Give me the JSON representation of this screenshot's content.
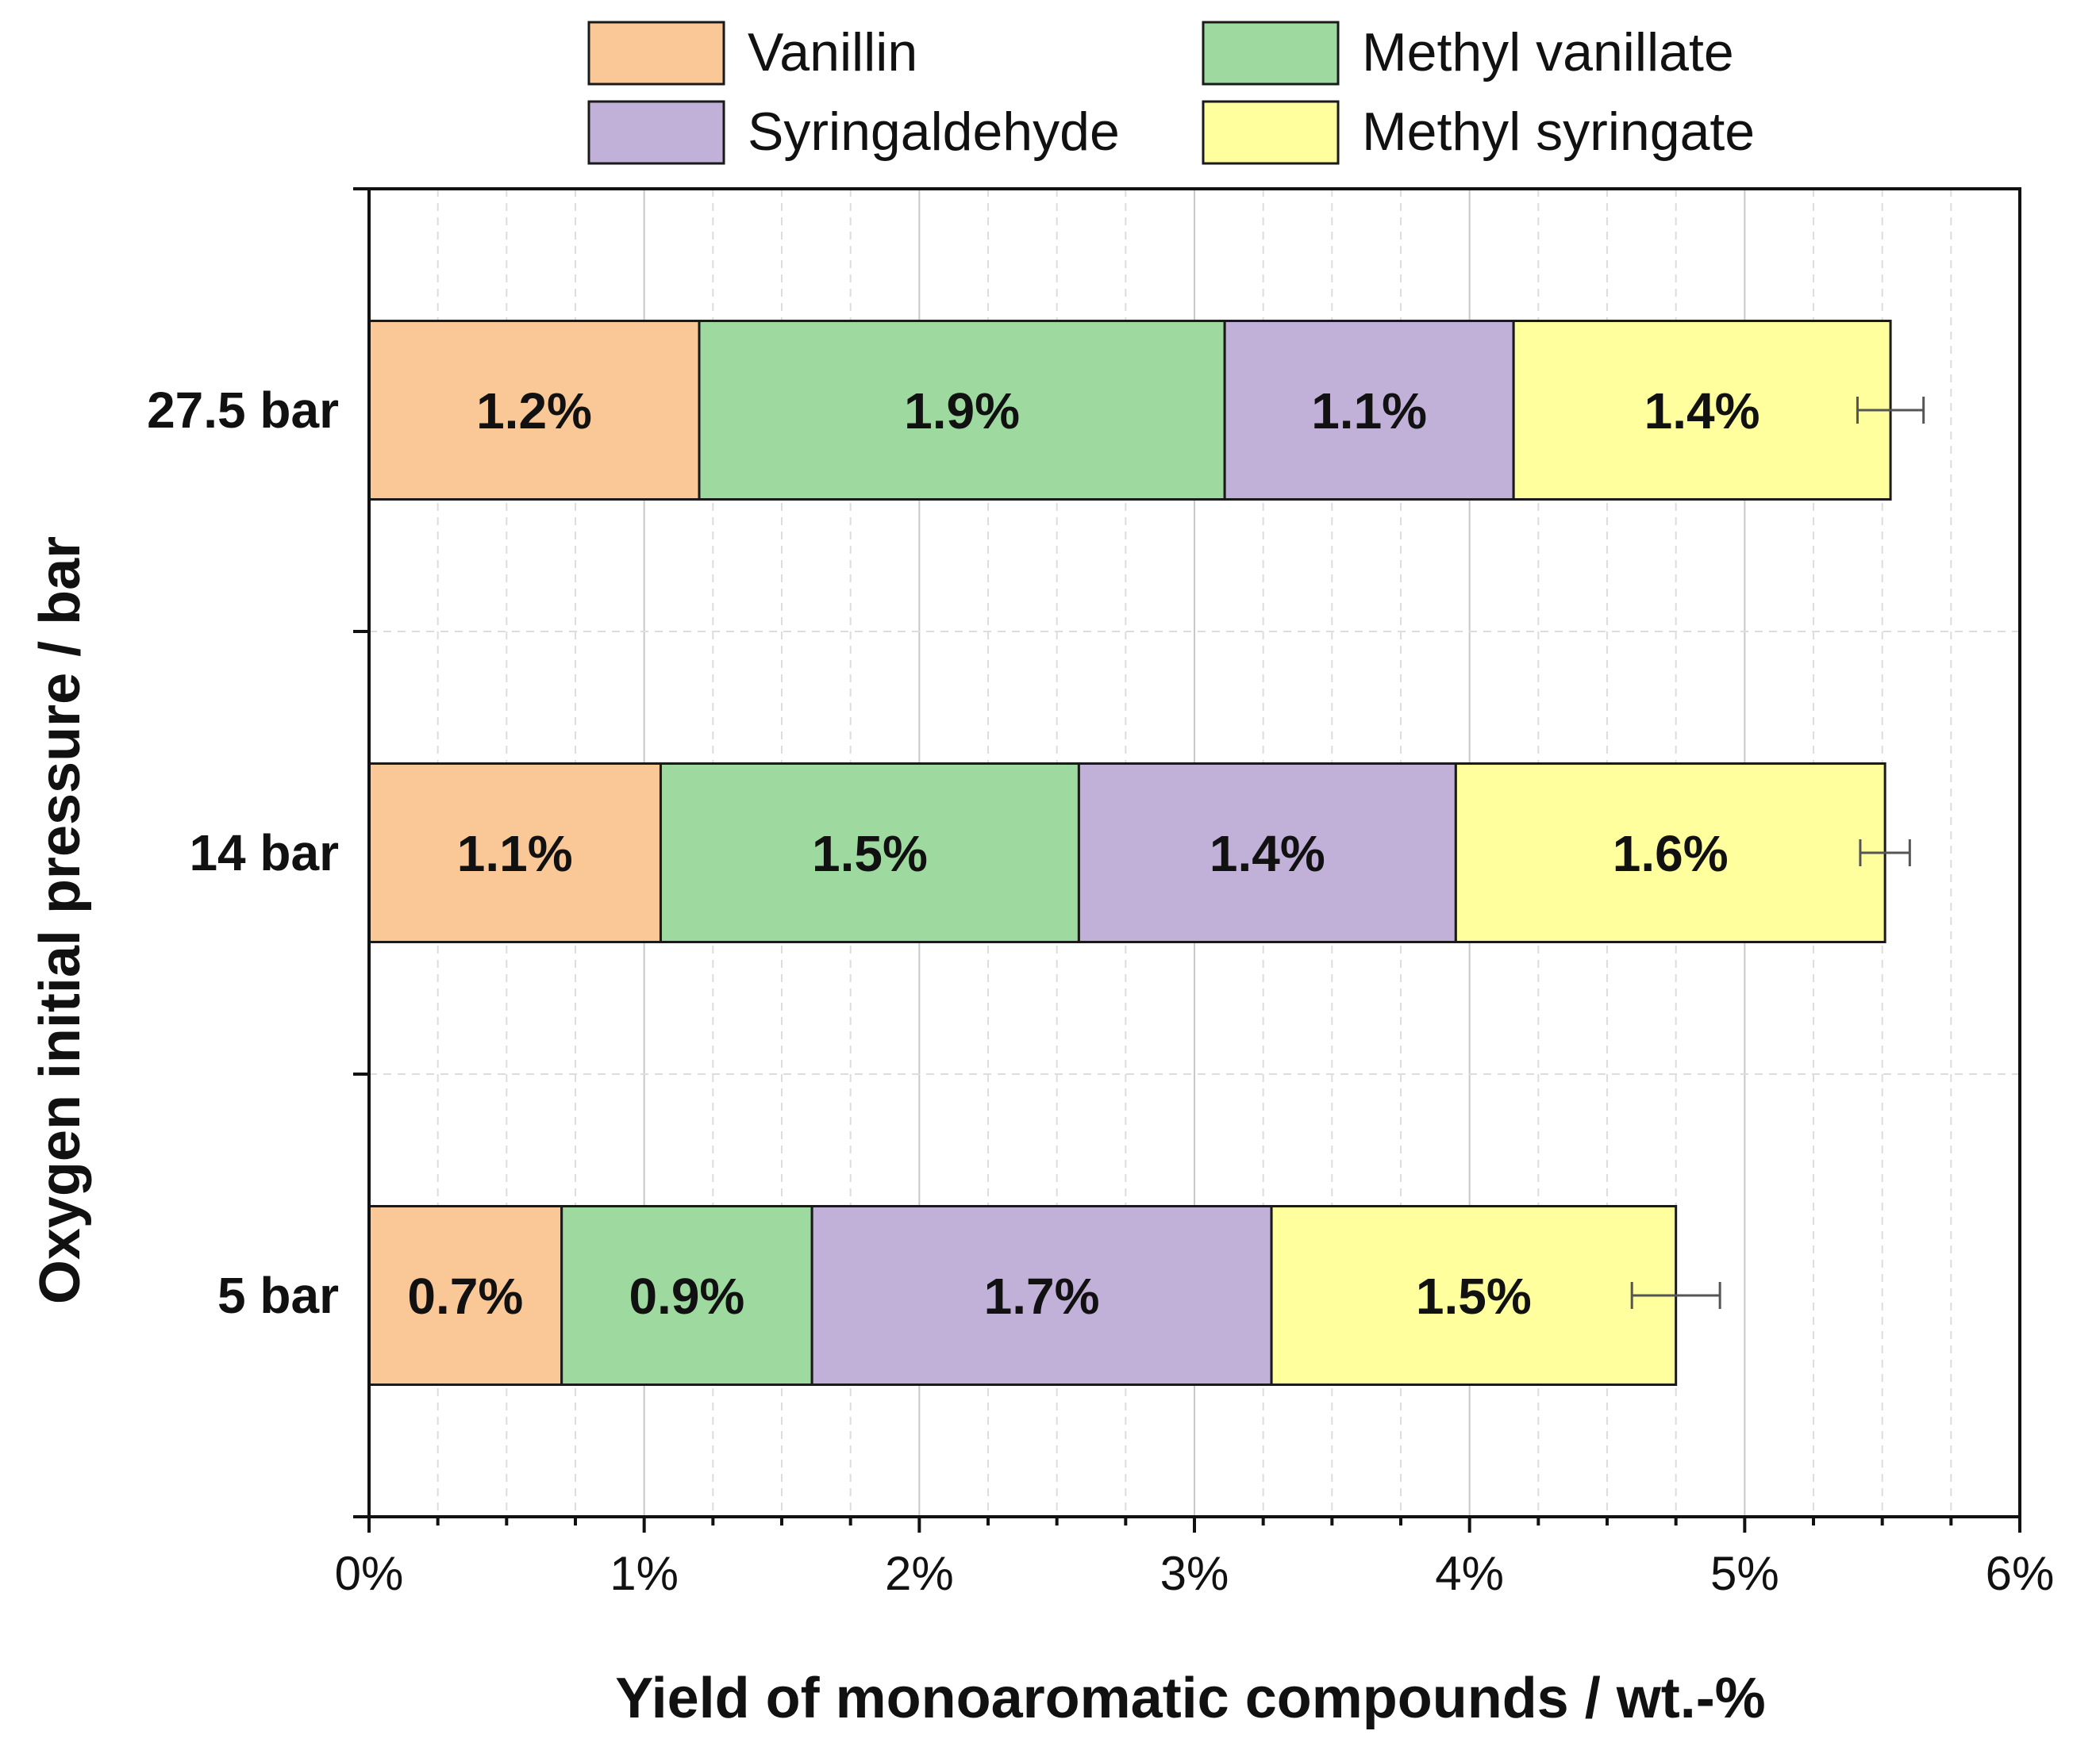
{
  "chart_data": {
    "type": "bar",
    "orientation": "horizontal",
    "stacked": true,
    "title": "",
    "xlabel": "Yield of monoaromatic compounds / wt.-%",
    "ylabel": "Oxygen initial pressure / bar",
    "xlim": [
      0,
      6
    ],
    "xticks": [
      0,
      1,
      2,
      3,
      4,
      5,
      6
    ],
    "xtick_labels": [
      "0%",
      "1%",
      "2%",
      "3%",
      "4%",
      "5%",
      "6%"
    ],
    "categories": [
      "27.5 bar",
      "14 bar",
      "5 bar"
    ],
    "grid": true,
    "legend_position": "top",
    "series": [
      {
        "name": "Vanillin",
        "color": "#FAC896",
        "values": [
          1.2,
          1.06,
          0.7
        ],
        "labels": [
          "1.2%",
          "1.1%",
          "0.7%"
        ]
      },
      {
        "name": "Methyl vanillate",
        "color": "#9ED9A0",
        "values": [
          1.91,
          1.52,
          0.91
        ],
        "labels": [
          "1.9%",
          "1.5%",
          "0.9%"
        ]
      },
      {
        "name": "Syringaldehyde",
        "color": "#C1B1D9",
        "values": [
          1.05,
          1.37,
          1.67
        ],
        "labels": [
          "1.1%",
          "1.4%",
          "1.7%"
        ]
      },
      {
        "name": "Methyl syringate",
        "color": "#FFFF9E",
        "values": [
          1.37,
          1.56,
          1.47
        ],
        "labels": [
          "1.4%",
          "1.6%",
          "1.5%"
        ]
      }
    ],
    "error_bars": [
      {
        "category": "27.5 bar",
        "total": 5.53,
        "low": 5.41,
        "high": 5.65
      },
      {
        "category": "14 bar",
        "total": 5.51,
        "low": 5.42,
        "high": 5.6
      },
      {
        "category": "5 bar",
        "total": 4.75,
        "low": 4.59,
        "high": 4.91
      }
    ]
  }
}
